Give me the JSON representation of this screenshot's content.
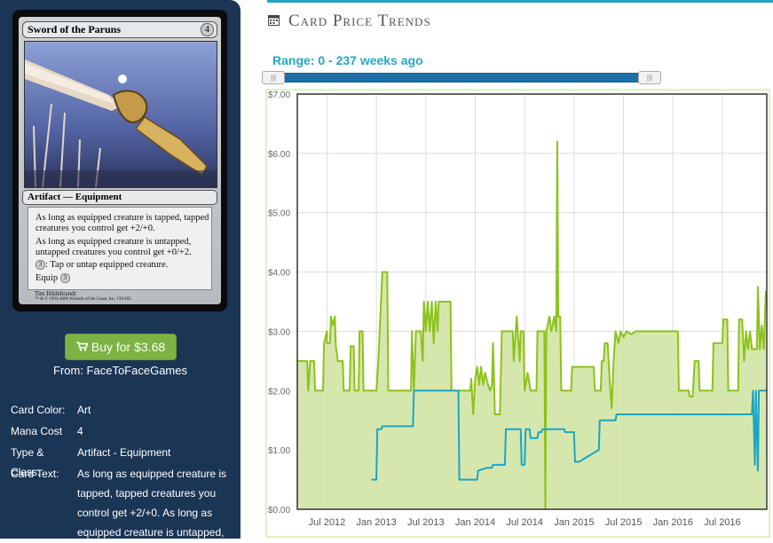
{
  "card": {
    "name": "Sword of the Paruns",
    "cost": "4",
    "type_line": "Artifact — Equipment",
    "rules": [
      "As long as equipped creature is tapped, tapped creatures you control get +2/+0.",
      "As long as equipped creature is untapped, untapped creatures you control get +0/+2.",
      ": Tap or untap equipped creature.",
      "Equip "
    ],
    "mana_symbol": "3",
    "artist": "Tim Hildebrandt",
    "copyright": "™ & © 1993-2006 Wizards of the Coast, Inc. 156/165"
  },
  "buy": {
    "label": "Buy for $3.68",
    "icon": "cart-icon"
  },
  "from": "From: FaceToFaceGames",
  "details": [
    {
      "label": "Card Color:",
      "value": "Art"
    },
    {
      "label": "Mana Cost",
      "value": "4"
    },
    {
      "label": "Type & Class:",
      "value": "Artifact - Equipment"
    },
    {
      "label": "Card Text:",
      "value": "As long as equipped creature is tapped, tapped creatures you control get +2/+0. As long as equipped creature is untapped,"
    }
  ],
  "header": {
    "title": "Card Price Trends",
    "icon": "calendar-icon"
  },
  "range": {
    "label": "Range: 0 - 237 weeks ago",
    "from_weeks": 0,
    "to_weeks": 237
  },
  "colors": {
    "sidebar": "#1b3555",
    "accent": "#21a7c3",
    "green_line": "#8cc21a",
    "green_fill": "#d2e4a4",
    "blue_line": "#19a6c6",
    "buy": "#7cb342"
  },
  "chart_data": {
    "type": "line",
    "ylim": [
      0,
      7
    ],
    "y_ticks": [
      "$0.00",
      "$1.00",
      "$2.00",
      "$3.00",
      "$4.00",
      "$5.00",
      "$6.00",
      "$7.00"
    ],
    "x_ticks": [
      {
        "label": "Jul 2012",
        "x": 2012.5
      },
      {
        "label": "Jan 2013",
        "x": 2013.0
      },
      {
        "label": "Jul 2013",
        "x": 2013.5
      },
      {
        "label": "Jan 2014",
        "x": 2014.0
      },
      {
        "label": "Jul 2014",
        "x": 2014.5
      },
      {
        "label": "Jan 2015",
        "x": 2015.0
      },
      {
        "label": "Jul 2015",
        "x": 2015.5
      },
      {
        "label": "Jan 2016",
        "x": 2016.0
      },
      {
        "label": "Jul 2016",
        "x": 2016.5
      }
    ],
    "xlim": [
      2012.2,
      2016.95
    ],
    "grid": true,
    "series": [
      {
        "key": "retail",
        "color": "#8cc21a",
        "fill": true,
        "points": [
          [
            2012.2,
            2.5
          ],
          [
            2012.3,
            2.5
          ],
          [
            2012.31,
            2.0
          ],
          [
            2012.33,
            2.5
          ],
          [
            2012.37,
            2.5
          ],
          [
            2012.38,
            2.0
          ],
          [
            2012.46,
            2.0
          ],
          [
            2012.47,
            2.8
          ],
          [
            2012.5,
            3.0
          ],
          [
            2012.5,
            2.8
          ],
          [
            2012.53,
            2.8
          ],
          [
            2012.54,
            3.25
          ],
          [
            2012.56,
            3.1
          ],
          [
            2012.58,
            3.25
          ],
          [
            2012.59,
            2.75
          ],
          [
            2012.61,
            2.5
          ],
          [
            2012.66,
            2.5
          ],
          [
            2012.67,
            2.0
          ],
          [
            2012.73,
            2.0
          ],
          [
            2012.74,
            2.75
          ],
          [
            2012.77,
            2.75
          ],
          [
            2012.78,
            2.0
          ],
          [
            2012.82,
            2.0
          ],
          [
            2012.83,
            3.0
          ],
          [
            2012.86,
            3.0
          ],
          [
            2012.87,
            2.0
          ],
          [
            2013.0,
            2.0
          ],
          [
            2013.02,
            2.5
          ],
          [
            2013.06,
            4.0
          ],
          [
            2013.11,
            4.0
          ],
          [
            2013.12,
            2.0
          ],
          [
            2013.35,
            2.0
          ],
          [
            2013.36,
            3.0
          ],
          [
            2013.38,
            2.0
          ],
          [
            2013.4,
            3.0
          ],
          [
            2013.45,
            3.0
          ],
          [
            2013.47,
            2.5
          ],
          [
            2013.48,
            3.5
          ],
          [
            2013.5,
            3.0
          ],
          [
            2013.52,
            3.5
          ],
          [
            2013.54,
            3.0
          ],
          [
            2013.56,
            3.5
          ],
          [
            2013.58,
            2.8
          ],
          [
            2013.6,
            3.5
          ],
          [
            2013.62,
            3.0
          ],
          [
            2013.63,
            3.5
          ],
          [
            2013.75,
            3.5
          ],
          [
            2013.76,
            2.0
          ],
          [
            2013.95,
            2.0
          ],
          [
            2013.96,
            2.2
          ],
          [
            2013.98,
            1.6
          ],
          [
            2014.0,
            2.2
          ],
          [
            2014.02,
            2.4
          ],
          [
            2014.04,
            2.1
          ],
          [
            2014.06,
            2.4
          ],
          [
            2014.08,
            2.1
          ],
          [
            2014.1,
            2.3
          ],
          [
            2014.13,
            2.1
          ],
          [
            2014.15,
            2.0
          ],
          [
            2014.17,
            2.1
          ],
          [
            2014.18,
            2.8
          ],
          [
            2014.2,
            1.6
          ],
          [
            2014.25,
            1.6
          ],
          [
            2014.27,
            3.0
          ],
          [
            2014.38,
            3.0
          ],
          [
            2014.39,
            2.5
          ],
          [
            2014.42,
            3.25
          ],
          [
            2014.45,
            2.5
          ],
          [
            2014.46,
            3.0
          ],
          [
            2014.49,
            3.0
          ],
          [
            2014.5,
            2.0
          ],
          [
            2014.53,
            2.3
          ],
          [
            2014.56,
            2.0
          ],
          [
            2014.62,
            2.0
          ],
          [
            2014.63,
            3.0
          ],
          [
            2014.7,
            3.0
          ],
          [
            2014.71,
            0.0
          ],
          [
            2014.72,
            3.0
          ],
          [
            2014.75,
            3.25
          ],
          [
            2014.77,
            3.0
          ],
          [
            2014.8,
            3.25
          ],
          [
            2014.82,
            3.0
          ],
          [
            2014.83,
            6.2
          ],
          [
            2014.84,
            3.25
          ],
          [
            2014.86,
            3.25
          ],
          [
            2014.87,
            2.0
          ],
          [
            2014.97,
            2.0
          ],
          [
            2014.98,
            2.4
          ],
          [
            2015.2,
            2.4
          ],
          [
            2015.21,
            2.0
          ],
          [
            2015.27,
            2.0
          ],
          [
            2015.28,
            2.5
          ],
          [
            2015.3,
            2.5
          ],
          [
            2015.31,
            2.8
          ],
          [
            2015.34,
            2.8
          ],
          [
            2015.36,
            2.2
          ],
          [
            2015.38,
            1.7
          ],
          [
            2015.4,
            2.5
          ],
          [
            2015.42,
            3.0
          ],
          [
            2015.45,
            2.8
          ],
          [
            2015.47,
            3.0
          ],
          [
            2015.5,
            2.9
          ],
          [
            2015.53,
            3.0
          ],
          [
            2015.58,
            2.95
          ],
          [
            2015.62,
            3.0
          ],
          [
            2016.05,
            3.0
          ],
          [
            2016.06,
            2.0
          ],
          [
            2016.16,
            2.0
          ],
          [
            2016.17,
            1.9
          ],
          [
            2016.2,
            1.9
          ],
          [
            2016.22,
            2.5
          ],
          [
            2016.26,
            2.5
          ],
          [
            2016.27,
            2.0
          ],
          [
            2016.4,
            2.0
          ],
          [
            2016.41,
            2.8
          ],
          [
            2016.5,
            2.8
          ],
          [
            2016.51,
            3.2
          ],
          [
            2016.55,
            3.2
          ],
          [
            2016.56,
            2.0
          ],
          [
            2016.66,
            2.0
          ],
          [
            2016.67,
            3.2
          ],
          [
            2016.7,
            3.2
          ],
          [
            2016.72,
            2.5
          ],
          [
            2016.74,
            3.0
          ],
          [
            2016.76,
            2.7
          ],
          [
            2016.78,
            3.0
          ],
          [
            2016.8,
            2.7
          ],
          [
            2016.85,
            2.7
          ],
          [
            2016.86,
            3.75
          ],
          [
            2016.88,
            2.7
          ],
          [
            2016.9,
            3.1
          ],
          [
            2016.92,
            2.7
          ],
          [
            2016.94,
            3.68
          ]
        ]
      },
      {
        "key": "buylist",
        "color": "#19a6c6",
        "fill": false,
        "points": [
          [
            2012.95,
            0.5
          ],
          [
            2013.0,
            0.5
          ],
          [
            2013.01,
            1.35
          ],
          [
            2013.05,
            1.35
          ],
          [
            2013.06,
            1.4
          ],
          [
            2013.37,
            1.4
          ],
          [
            2013.38,
            2.0
          ],
          [
            2013.83,
            2.0
          ],
          [
            2013.84,
            0.5
          ],
          [
            2014.02,
            0.5
          ],
          [
            2014.03,
            0.65
          ],
          [
            2014.12,
            0.7
          ],
          [
            2014.17,
            0.7
          ],
          [
            2014.18,
            0.75
          ],
          [
            2014.3,
            0.75
          ],
          [
            2014.31,
            1.35
          ],
          [
            2014.46,
            1.35
          ],
          [
            2014.47,
            0.75
          ],
          [
            2014.5,
            0.75
          ],
          [
            2014.51,
            1.35
          ],
          [
            2014.55,
            1.35
          ],
          [
            2014.56,
            1.2
          ],
          [
            2014.63,
            1.2
          ],
          [
            2014.64,
            1.3
          ],
          [
            2014.67,
            1.3
          ],
          [
            2014.68,
            1.35
          ],
          [
            2014.9,
            1.35
          ],
          [
            2014.91,
            1.3
          ],
          [
            2014.98,
            1.3
          ],
          [
            2015.0,
            1.3
          ],
          [
            2015.01,
            0.8
          ],
          [
            2015.05,
            0.8
          ],
          [
            2015.25,
            1.0
          ],
          [
            2015.26,
            1.5
          ],
          [
            2015.42,
            1.5
          ],
          [
            2015.43,
            1.6
          ],
          [
            2016.8,
            1.6
          ],
          [
            2016.81,
            2.0
          ],
          [
            2016.83,
            0.75
          ],
          [
            2016.84,
            2.0
          ],
          [
            2016.86,
            0.65
          ],
          [
            2016.87,
            2.0
          ],
          [
            2016.95,
            2.0
          ]
        ]
      }
    ]
  }
}
